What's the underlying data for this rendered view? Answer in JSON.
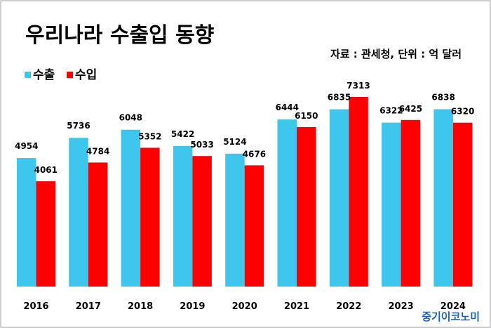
{
  "title": "우리나라 수출입 동향",
  "source_note": "자료 : 관세청, 단위 : 억 달러",
  "brand": "중기이코노미",
  "colors": {
    "export": "#3ec6ec",
    "import": "#ff0000",
    "brand": "#1f63b5",
    "border": "#bdbdbd"
  },
  "chart_data": {
    "type": "bar",
    "categories": [
      "2016",
      "2017",
      "2018",
      "2019",
      "2020",
      "2021",
      "2022",
      "2023",
      "2024"
    ],
    "series": [
      {
        "name": "수출",
        "values": [
          4954,
          5736,
          6048,
          5422,
          5124,
          6444,
          6835,
          6322,
          6838
        ]
      },
      {
        "name": "수입",
        "values": [
          4061,
          4784,
          5352,
          5033,
          4676,
          6150,
          7313,
          6425,
          6320
        ]
      }
    ],
    "ylim": [
      0,
      7313
    ],
    "legend": "top-left",
    "grid": false
  }
}
